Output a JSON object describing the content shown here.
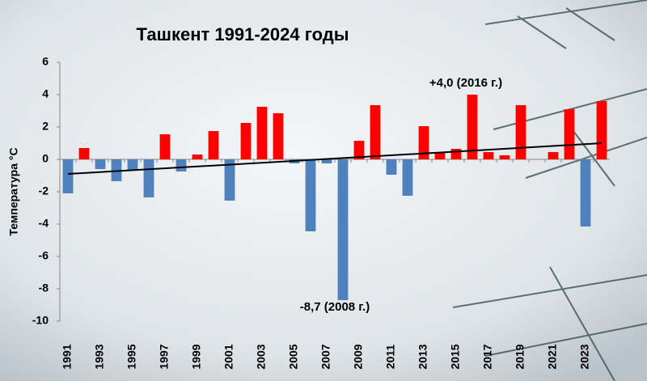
{
  "chart_data": {
    "type": "bar",
    "title": "Ташкент 1991-2024 годы",
    "y_label": "Температура °C",
    "categories": [
      "1991",
      null,
      "1993",
      null,
      "1995",
      null,
      "1997",
      null,
      "1999",
      null,
      "2001",
      null,
      "2003",
      null,
      "2005",
      null,
      "2007",
      null,
      "2009",
      null,
      "2011",
      null,
      "2013",
      null,
      "2015",
      null,
      "2017",
      null,
      "2019",
      null,
      "2021",
      null,
      "2023",
      null
    ],
    "values": [
      -2.1,
      0.7,
      -0.6,
      -1.35,
      -0.7,
      -2.35,
      1.55,
      -0.75,
      0.3,
      1.75,
      -2.55,
      2.25,
      3.25,
      2.85,
      -0.25,
      -4.45,
      -0.25,
      -8.7,
      1.15,
      3.35,
      -0.95,
      -2.25,
      2.05,
      0.4,
      0.65,
      4.0,
      0.45,
      0.25,
      3.35,
      0,
      0.45,
      3.1,
      -4.15,
      3.6
    ],
    "positive_color": "#ff0000",
    "negative_color": "#4f81bd",
    "trend": {
      "start": -0.9,
      "end": 1.0,
      "color": "#000000"
    },
    "ylim": [
      -10,
      6
    ],
    "yticks": [
      -10,
      -8,
      -6,
      -4,
      -2,
      0,
      2,
      4,
      6
    ],
    "grid": false,
    "annotations": [
      {
        "text": "+4,0 (2016 г.)",
        "index": 25
      },
      {
        "text": "-8,7 (2008 г.)",
        "index": 17
      }
    ]
  }
}
